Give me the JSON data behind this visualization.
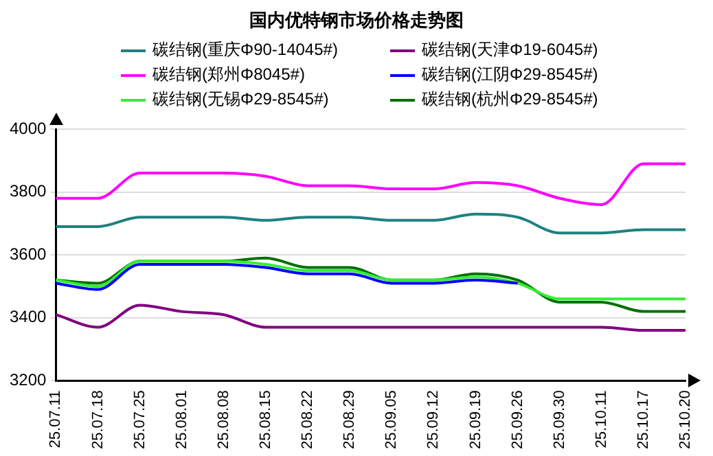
{
  "chart_data": {
    "type": "line",
    "title": "国内优特钢市场价格走势图",
    "categories": [
      "25.07.11",
      "25.07.18",
      "25.07.25",
      "25.08.01",
      "25.08.08",
      "25.08.15",
      "25.08.22",
      "25.08.29",
      "25.09.05",
      "25.09.12",
      "25.09.19",
      "25.09.26",
      "25.09.30",
      "25.10.11",
      "25.10.17",
      "25.10.20"
    ],
    "series": [
      {
        "name": "碳结钢(重庆Φ90-14045#)",
        "color": "#1f8080",
        "values": [
          3690,
          3690,
          3720,
          3720,
          3720,
          3710,
          3720,
          3720,
          3710,
          3710,
          3730,
          3720,
          3670,
          3670,
          3680,
          3680
        ]
      },
      {
        "name": "碳结钢(天津Φ19-6045#)",
        "color": "#800080",
        "values": [
          3410,
          3370,
          3440,
          3420,
          3410,
          3370,
          3370,
          3370,
          3370,
          3370,
          3370,
          3370,
          3370,
          3370,
          3360,
          3360
        ]
      },
      {
        "name": "碳结钢(郑州Φ8045#)",
        "color": "#ff00ff",
        "values": [
          3780,
          3780,
          3860,
          3860,
          3860,
          3850,
          3820,
          3820,
          3810,
          3810,
          3830,
          3820,
          3780,
          3760,
          3890,
          3890
        ]
      },
      {
        "name": "碳结钢(江阴Φ29-8545#)",
        "color": "#0000ff",
        "values": [
          3510,
          3490,
          3570,
          3570,
          3570,
          3560,
          3540,
          3540,
          3510,
          3510,
          3520,
          3510,
          null,
          null,
          null,
          null
        ]
      },
      {
        "name": "碳结钢(无锡Φ29-8545#)",
        "color": "#33ee33",
        "values": [
          3520,
          3500,
          3580,
          3580,
          3580,
          3570,
          3550,
          3550,
          3520,
          3520,
          3530,
          3510,
          3460,
          3460,
          3460,
          3460
        ]
      },
      {
        "name": "碳结钢(杭州Φ29-8545#)",
        "color": "#007000",
        "values": [
          3520,
          3510,
          3580,
          3580,
          3580,
          3590,
          3560,
          3560,
          3520,
          3520,
          3540,
          3520,
          3450,
          3450,
          3420,
          3420
        ]
      }
    ],
    "ylim": [
      3200,
      4000
    ],
    "yticks": [
      3200,
      3400,
      3600,
      3800,
      4000
    ],
    "grid": "y",
    "legend": "top",
    "marker": "none",
    "line_style": "solid"
  }
}
